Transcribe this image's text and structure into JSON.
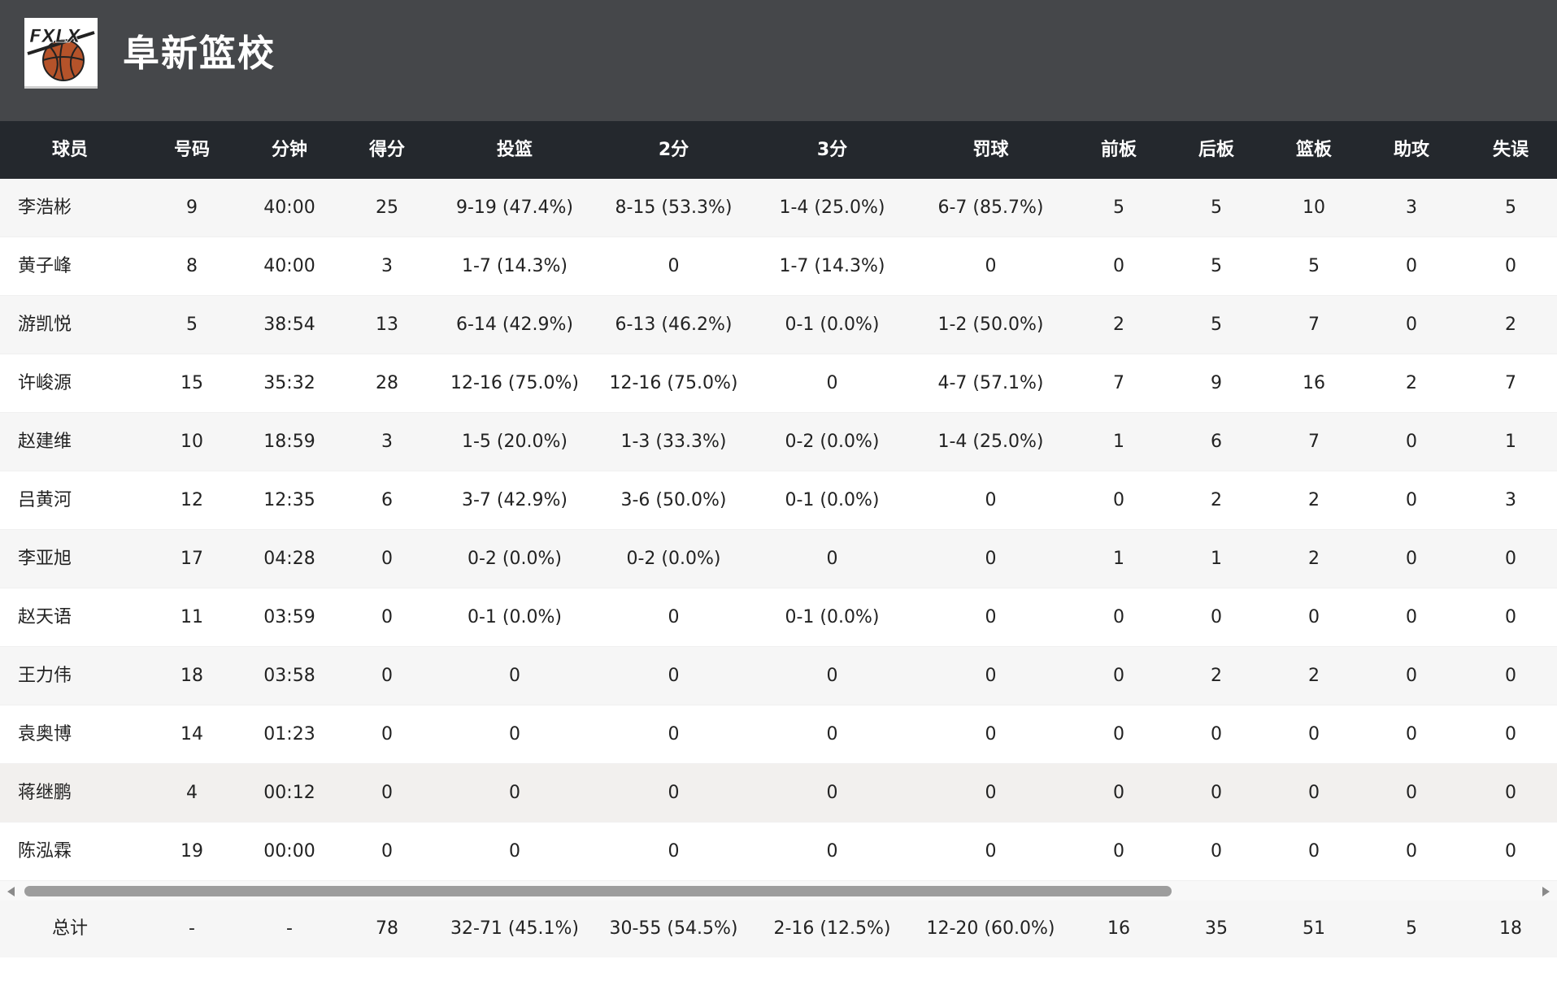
{
  "team": {
    "name": "阜新篮校",
    "logo_text": "FXLX",
    "logo_icon": "basketball-icon"
  },
  "columns": [
    "球员",
    "号码",
    "分钟",
    "得分",
    "投篮",
    "2分",
    "3分",
    "罚球",
    "前板",
    "后板",
    "篮板",
    "助攻",
    "失误"
  ],
  "players": [
    [
      "李浩彬",
      "9",
      "40:00",
      "25",
      "9-19 (47.4%)",
      "8-15 (53.3%)",
      "1-4 (25.0%)",
      "6-7 (85.7%)",
      "5",
      "5",
      "10",
      "3",
      "5"
    ],
    [
      "黄子峰",
      "8",
      "40:00",
      "3",
      "1-7 (14.3%)",
      "0",
      "1-7 (14.3%)",
      "0",
      "0",
      "5",
      "5",
      "0",
      "0"
    ],
    [
      "游凯悦",
      "5",
      "38:54",
      "13",
      "6-14 (42.9%)",
      "6-13 (46.2%)",
      "0-1 (0.0%)",
      "1-2 (50.0%)",
      "2",
      "5",
      "7",
      "0",
      "2"
    ],
    [
      "许峻源",
      "15",
      "35:32",
      "28",
      "12-16 (75.0%)",
      "12-16 (75.0%)",
      "0",
      "4-7 (57.1%)",
      "7",
      "9",
      "16",
      "2",
      "7"
    ],
    [
      "赵建维",
      "10",
      "18:59",
      "3",
      "1-5 (20.0%)",
      "1-3 (33.3%)",
      "0-2 (0.0%)",
      "1-4 (25.0%)",
      "1",
      "6",
      "7",
      "0",
      "1"
    ],
    [
      "吕黄河",
      "12",
      "12:35",
      "6",
      "3-7 (42.9%)",
      "3-6 (50.0%)",
      "0-1 (0.0%)",
      "0",
      "0",
      "2",
      "2",
      "0",
      "3"
    ],
    [
      "李亚旭",
      "17",
      "04:28",
      "0",
      "0-2 (0.0%)",
      "0-2 (0.0%)",
      "0",
      "0",
      "1",
      "1",
      "2",
      "0",
      "0"
    ],
    [
      "赵天语",
      "11",
      "03:59",
      "0",
      "0-1 (0.0%)",
      "0",
      "0-1 (0.0%)",
      "0",
      "0",
      "0",
      "0",
      "0",
      "0"
    ],
    [
      "王力伟",
      "18",
      "03:58",
      "0",
      "0",
      "0",
      "0",
      "0",
      "0",
      "2",
      "2",
      "0",
      "0"
    ],
    [
      "袁奥博",
      "14",
      "01:23",
      "0",
      "0",
      "0",
      "0",
      "0",
      "0",
      "0",
      "0",
      "0",
      "0"
    ],
    [
      "蒋继鹏",
      "4",
      "00:12",
      "0",
      "0",
      "0",
      "0",
      "0",
      "0",
      "0",
      "0",
      "0",
      "0"
    ],
    [
      "陈泓霖",
      "19",
      "00:00",
      "0",
      "0",
      "0",
      "0",
      "0",
      "0",
      "0",
      "0",
      "0",
      "0"
    ]
  ],
  "totals": [
    "总计",
    "-",
    "-",
    "78",
    "32-71 (45.1%)",
    "30-55 (54.5%)",
    "2-16 (12.5%)",
    "12-20 (60.0%)",
    "16",
    "35",
    "51",
    "5",
    "18"
  ],
  "scrollbar": {
    "position_fraction": 0.0,
    "visible_fraction": 0.74
  },
  "colors": {
    "header_bg": "#45474a",
    "table_head_bg": "#24282d",
    "logo_ball": "#b5532a"
  }
}
